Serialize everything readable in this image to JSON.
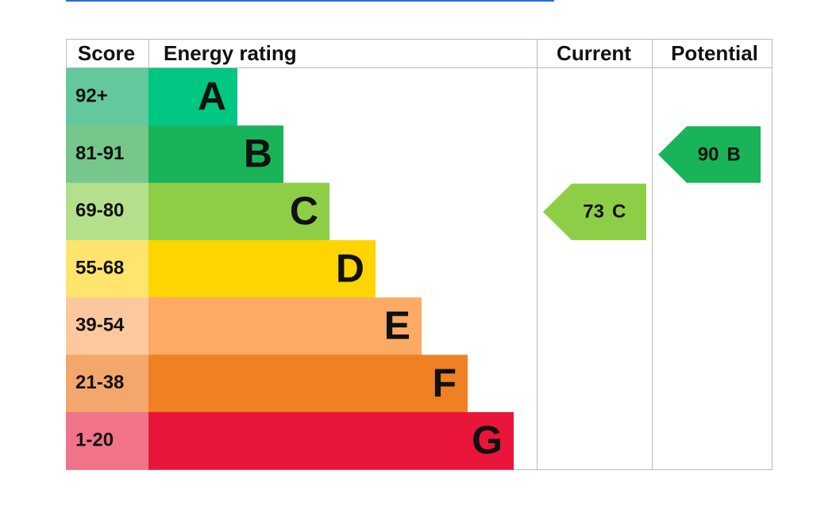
{
  "header": {
    "score": "Score",
    "rating": "Energy rating",
    "current": "Current",
    "potential": "Potential"
  },
  "bands": [
    {
      "score": "92+",
      "letter": "A",
      "color": "#00c781",
      "score_color": "#63c99d"
    },
    {
      "score": "81-91",
      "letter": "B",
      "color": "#19b459",
      "score_color": "#75c78b"
    },
    {
      "score": "69-80",
      "letter": "C",
      "color": "#8dce46",
      "score_color": "#b4df8b"
    },
    {
      "score": "55-68",
      "letter": "D",
      "color": "#ffd500",
      "score_color": "#ffe46d"
    },
    {
      "score": "39-54",
      "letter": "E",
      "color": "#fcaa65",
      "score_color": "#fdc89d"
    },
    {
      "score": "21-38",
      "letter": "F",
      "color": "#ef8023",
      "score_color": "#f4a76c"
    },
    {
      "score": "1-20",
      "letter": "G",
      "color": "#e9153b",
      "score_color": "#f1738a"
    }
  ],
  "current": {
    "score": 73,
    "band": "C"
  },
  "potential": {
    "score": 90,
    "band": "B"
  }
}
